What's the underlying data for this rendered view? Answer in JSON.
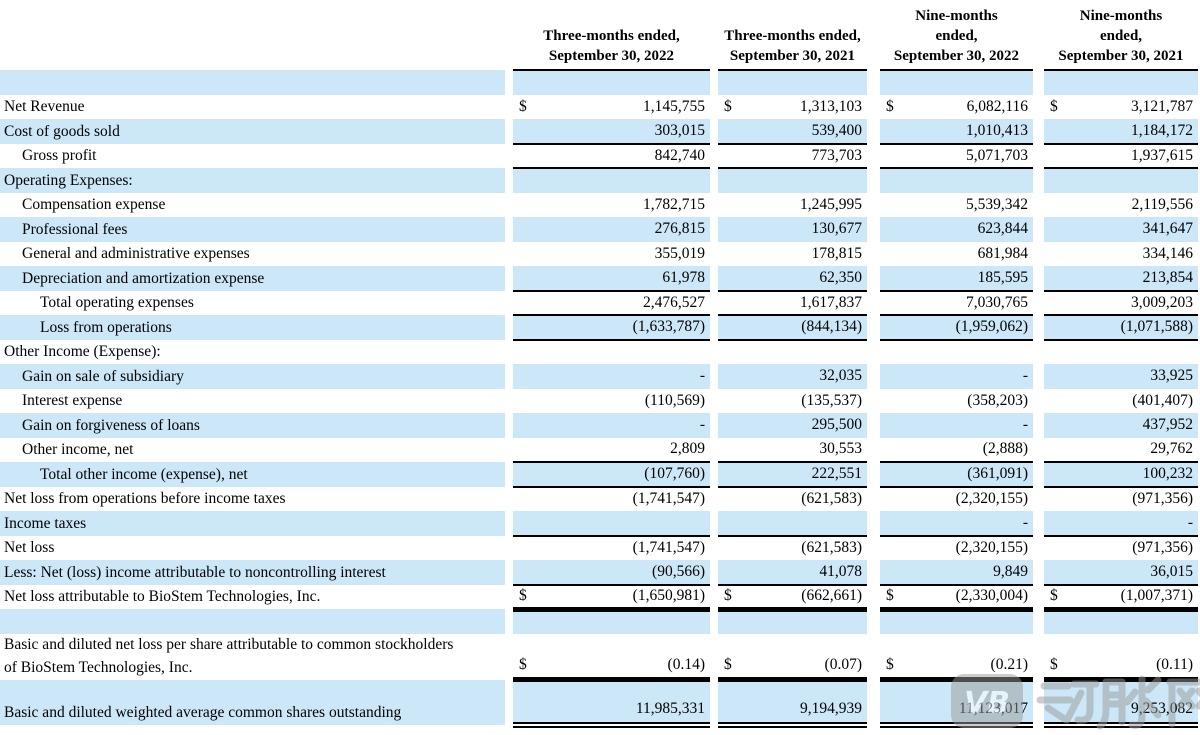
{
  "table": {
    "currency_symbol": "$",
    "colors": {
      "row_shade": "#cbe7f8",
      "rule": "#000000",
      "watermark_gray": "#9a9a9a"
    },
    "columns": [
      {
        "lines": [
          "Three-months ended,",
          "September 30, 2022"
        ]
      },
      {
        "lines": [
          "Three-months ended,",
          "September 30, 2021"
        ]
      },
      {
        "lines": [
          "Nine-months",
          "ended,",
          "September 30, 2022"
        ]
      },
      {
        "lines": [
          "Nine-months",
          "ended,",
          "September 30, 2021"
        ]
      }
    ],
    "rows": [
      {
        "label": "",
        "shade": true,
        "values": [
          "",
          "",
          "",
          ""
        ]
      },
      {
        "label": "Net Revenue",
        "indent": 0,
        "dollar": true,
        "values": [
          "1,145,755",
          "1,313,103",
          "6,082,116",
          "3,121,787"
        ]
      },
      {
        "label": "Cost of goods sold",
        "indent": 0,
        "shade": true,
        "values": [
          "303,015",
          "539,400",
          "1,010,413",
          "1,184,172"
        ],
        "border": "single"
      },
      {
        "label": "Gross profit",
        "indent": 1,
        "values": [
          "842,740",
          "773,703",
          "5,071,703",
          "1,937,615"
        ],
        "border": "single"
      },
      {
        "label": "Operating Expenses:",
        "indent": 0,
        "shade": true,
        "values": [
          "",
          "",
          "",
          ""
        ]
      },
      {
        "label": "Compensation expense",
        "indent": 1,
        "values": [
          "1,782,715",
          "1,245,995",
          "5,539,342",
          "2,119,556"
        ]
      },
      {
        "label": "Professional fees",
        "indent": 1,
        "shade": true,
        "values": [
          "276,815",
          "130,677",
          "623,844",
          "341,647"
        ]
      },
      {
        "label": "General and administrative expenses",
        "indent": 1,
        "values": [
          "355,019",
          "178,815",
          "681,984",
          "334,146"
        ]
      },
      {
        "label": "Depreciation and amortization expense",
        "indent": 1,
        "shade": true,
        "values": [
          "61,978",
          "62,350",
          "185,595",
          "213,854"
        ],
        "border": "single"
      },
      {
        "label": "Total operating expenses",
        "indent": 2,
        "values": [
          "2,476,527",
          "1,617,837",
          "7,030,765",
          "3,009,203"
        ],
        "border": "single"
      },
      {
        "label": "Loss from operations",
        "indent": 2,
        "shade": true,
        "values": [
          "(1,633,787)",
          "(844,134)",
          "(1,959,062)",
          "(1,071,588)"
        ],
        "border": "single"
      },
      {
        "label": "Other Income (Expense):",
        "indent": 0,
        "values": [
          "",
          "",
          "",
          ""
        ]
      },
      {
        "label": "Gain on sale of subsidiary",
        "indent": 1,
        "shade": true,
        "values": [
          "-",
          "32,035",
          "-",
          "33,925"
        ]
      },
      {
        "label": "Interest expense",
        "indent": 1,
        "values": [
          "(110,569)",
          "(135,537)",
          "(358,203)",
          "(401,407)"
        ]
      },
      {
        "label": "Gain on forgiveness of loans",
        "indent": 1,
        "shade": true,
        "values": [
          "-",
          "295,500",
          "-",
          "437,952"
        ]
      },
      {
        "label": "Other income, net",
        "indent": 1,
        "values": [
          "2,809",
          "30,553",
          "(2,888)",
          "29,762"
        ],
        "border": "single"
      },
      {
        "label": "Total other income (expense), net",
        "indent": 2,
        "shade": true,
        "values": [
          "(107,760)",
          "222,551",
          "(361,091)",
          "100,232"
        ],
        "border": "single"
      },
      {
        "label": "Net loss from operations before income taxes",
        "indent": 0,
        "values": [
          "(1,741,547)",
          "(621,583)",
          "(2,320,155)",
          "(971,356)"
        ]
      },
      {
        "label": "Income taxes",
        "indent": 0,
        "shade": true,
        "values": [
          "",
          "",
          "-",
          "-"
        ],
        "border": "single"
      },
      {
        "label": "Net loss",
        "indent": 0,
        "values": [
          "(1,741,547)",
          "(621,583)",
          "(2,320,155)",
          "(971,356)"
        ]
      },
      {
        "label": "Less: Net (loss) income  attributable to noncontrolling interest",
        "indent": 0,
        "shade": true,
        "values": [
          "(90,566)",
          "41,078",
          "9,849",
          "36,015"
        ],
        "border": "single"
      },
      {
        "label": "Net loss attributable to BioStem Technologies, Inc.",
        "indent": 0,
        "dollar": true,
        "values": [
          "(1,650,981)",
          "(662,661)",
          "(2,330,004)",
          "(1,007,371)"
        ],
        "border": "thick"
      },
      {
        "label": "",
        "shade": true,
        "values": [
          "",
          "",
          "",
          ""
        ]
      },
      {
        "label": "Basic and diluted net loss per share attributable to common stockholders",
        "label2": "of BioStem Technologies, Inc.",
        "indent": 0,
        "dollar": true,
        "values": [
          "(0.14)",
          "(0.07)",
          "(0.21)",
          "(0.11)"
        ],
        "border": "thick",
        "tall": true
      },
      {
        "label": "Basic and diluted weighted average common shares outstanding",
        "indent": 0,
        "shade": true,
        "values": [
          "11,985,331",
          "9,194,939",
          "11,123,017",
          "9,253,082"
        ],
        "border": "double",
        "tall": true
      }
    ]
  },
  "watermark": {
    "logo_text": "VB",
    "text": "动脉网"
  }
}
